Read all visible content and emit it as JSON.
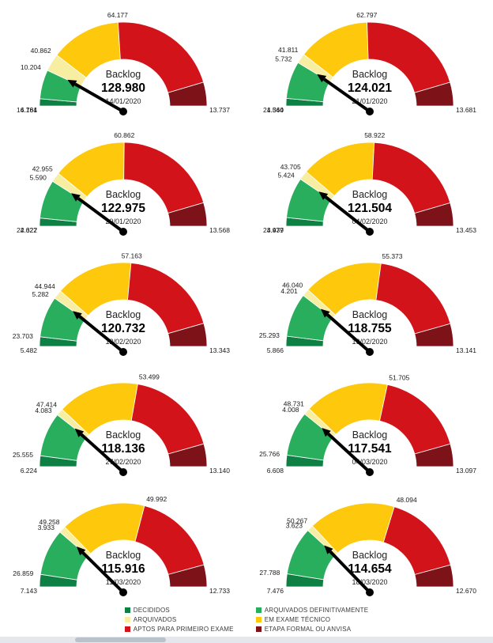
{
  "page": {
    "background": "#ffffff"
  },
  "colors": {
    "segments": [
      "#0e8043",
      "#29ae5e",
      "#f7eea1",
      "#fec90c",
      "#d21319",
      "#7e1219"
    ],
    "needle": "#000000",
    "label_text": "#1a1a1a",
    "scrollbar_track": "#e4e7eb",
    "scrollbar_thumb": "#b9c2cc"
  },
  "legend": {
    "columns": [
      {
        "items": [
          {
            "label": "DECIDIDOS",
            "color_index": 0
          },
          {
            "label": "ARQUIVADOS",
            "color_index": 2
          },
          {
            "label": "APTOS PARA PRIMEIRO EXAME",
            "color_index": 4
          }
        ]
      },
      {
        "items": [
          {
            "label": "ARQUIVADOS DEFINITIVAMENTE",
            "color_index": 1
          },
          {
            "label": "EM EXAME TÉCNICO",
            "color_index": 3
          },
          {
            "label": "ETAPA FORMAL OU ANVISA",
            "color_index": 5
          }
        ]
      }
    ]
  },
  "chart_data": [
    {
      "type": "gauge",
      "subtype": "half-donut",
      "title": "Backlog",
      "backlog_label": "128.980",
      "backlog_value": 128980,
      "date": "14/01/2020",
      "segments": [
        {
          "name": "DECIDIDOS",
          "label": "4.161",
          "value": 4161
        },
        {
          "name": "ARQUIVADOS DEFINITIVAMENTE",
          "label": "16.784",
          "value": 16784
        },
        {
          "name": "ARQUIVADOS",
          "label": "10.204",
          "value": 10204
        },
        {
          "name": "EM EXAME TÉCNICO",
          "label": "40.862",
          "value": 40862
        },
        {
          "name": "APTOS PARA PRIMEIRO EXAME",
          "label": "64.177",
          "value": 64177
        },
        {
          "name": "ETAPA FORMAL OU ANVISA",
          "label": "13.737",
          "value": 13737
        }
      ]
    },
    {
      "type": "gauge",
      "subtype": "half-donut",
      "title": "Backlog",
      "backlog_label": "124.021",
      "backlog_value": 124021,
      "date": "21/01/2020",
      "segments": [
        {
          "name": "DECIDIDOS",
          "label": "4.344",
          "value": 4344
        },
        {
          "name": "ARQUIVADOS DEFINITIVAMENTE",
          "label": "21.560",
          "value": 21560
        },
        {
          "name": "ARQUIVADOS",
          "label": "5.732",
          "value": 5732
        },
        {
          "name": "EM EXAME TÉCNICO",
          "label": "41.811",
          "value": 41811
        },
        {
          "name": "APTOS PARA PRIMEIRO EXAME",
          "label": "62.797",
          "value": 62797
        },
        {
          "name": "ETAPA FORMAL OU ANVISA",
          "label": "13.681",
          "value": 13681
        }
      ]
    },
    {
      "type": "gauge",
      "subtype": "half-donut",
      "title": "Backlog",
      "backlog_label": "122.975",
      "backlog_value": 122975,
      "date": "29/01/2020",
      "segments": [
        {
          "name": "DECIDIDOS",
          "label": "4.622",
          "value": 4622
        },
        {
          "name": "ARQUIVADOS DEFINITIVAMENTE",
          "label": "22.327",
          "value": 22327
        },
        {
          "name": "ARQUIVADOS",
          "label": "5.590",
          "value": 5590
        },
        {
          "name": "EM EXAME TÉCNICO",
          "label": "42.955",
          "value": 42955
        },
        {
          "name": "APTOS PARA PRIMEIRO EXAME",
          "label": "60.862",
          "value": 60862
        },
        {
          "name": "ETAPA FORMAL OU ANVISA",
          "label": "13.568",
          "value": 13568
        }
      ]
    },
    {
      "type": "gauge",
      "subtype": "half-donut",
      "title": "Backlog",
      "backlog_label": "121.504",
      "backlog_value": 121504,
      "date": "04/02/2020",
      "segments": [
        {
          "name": "DECIDIDOS",
          "label": "4.979",
          "value": 4979
        },
        {
          "name": "ARQUIVADOS DEFINITIVAMENTE",
          "label": "23.437",
          "value": 23437
        },
        {
          "name": "ARQUIVADOS",
          "label": "5.424",
          "value": 5424
        },
        {
          "name": "EM EXAME TÉCNICO",
          "label": "43.705",
          "value": 43705
        },
        {
          "name": "APTOS PARA PRIMEIRO EXAME",
          "label": "58.922",
          "value": 58922
        },
        {
          "name": "ETAPA FORMAL OU ANVISA",
          "label": "13.453",
          "value": 13453
        }
      ]
    },
    {
      "type": "gauge",
      "subtype": "half-donut",
      "title": "Backlog",
      "backlog_label": "120.732",
      "backlog_value": 120732,
      "date": "12/02/2020",
      "segments": [
        {
          "name": "DECIDIDOS",
          "label": "5.482",
          "value": 5482
        },
        {
          "name": "ARQUIVADOS DEFINITIVAMENTE",
          "label": "23.703",
          "value": 23703
        },
        {
          "name": "ARQUIVADOS",
          "label": "5.282",
          "value": 5282
        },
        {
          "name": "EM EXAME TÉCNICO",
          "label": "44.944",
          "value": 44944
        },
        {
          "name": "APTOS PARA PRIMEIRO EXAME",
          "label": "57.163",
          "value": 57163
        },
        {
          "name": "ETAPA FORMAL OU ANVISA",
          "label": "13.343",
          "value": 13343
        }
      ]
    },
    {
      "type": "gauge",
      "subtype": "half-donut",
      "title": "Backlog",
      "backlog_label": "118.755",
      "backlog_value": 118755,
      "date": "19/02/2020",
      "segments": [
        {
          "name": "DECIDIDOS",
          "label": "5.866",
          "value": 5866
        },
        {
          "name": "ARQUIVADOS DEFINITIVAMENTE",
          "label": "25.293",
          "value": 25293
        },
        {
          "name": "ARQUIVADOS",
          "label": "4.201",
          "value": 4201
        },
        {
          "name": "EM EXAME TÉCNICO",
          "label": "46.040",
          "value": 46040
        },
        {
          "name": "APTOS PARA PRIMEIRO EXAME",
          "label": "55.373",
          "value": 55373
        },
        {
          "name": "ETAPA FORMAL OU ANVISA",
          "label": "13.141",
          "value": 13141
        }
      ]
    },
    {
      "type": "gauge",
      "subtype": "half-donut",
      "title": "Backlog",
      "backlog_label": "118.136",
      "backlog_value": 118136,
      "date": "27/02/2020",
      "segments": [
        {
          "name": "DECIDIDOS",
          "label": "6.224",
          "value": 6224
        },
        {
          "name": "ARQUIVADOS DEFINITIVAMENTE",
          "label": "25.555",
          "value": 25555
        },
        {
          "name": "ARQUIVADOS",
          "label": "4.083",
          "value": 4083
        },
        {
          "name": "EM EXAME TÉCNICO",
          "label": "47.414",
          "value": 47414
        },
        {
          "name": "APTOS PARA PRIMEIRO EXAME",
          "label": "53.499",
          "value": 53499
        },
        {
          "name": "ETAPA FORMAL OU ANVISA",
          "label": "13.140",
          "value": 13140
        }
      ]
    },
    {
      "type": "gauge",
      "subtype": "half-donut",
      "title": "Backlog",
      "backlog_label": "117.541",
      "backlog_value": 117541,
      "date": "04/03/2020",
      "segments": [
        {
          "name": "DECIDIDOS",
          "label": "6.608",
          "value": 6608
        },
        {
          "name": "ARQUIVADOS DEFINITIVAMENTE",
          "label": "25.766",
          "value": 25766
        },
        {
          "name": "ARQUIVADOS",
          "label": "4.008",
          "value": 4008
        },
        {
          "name": "EM EXAME TÉCNICO",
          "label": "48.731",
          "value": 48731
        },
        {
          "name": "APTOS PARA PRIMEIRO EXAME",
          "label": "51.705",
          "value": 51705
        },
        {
          "name": "ETAPA FORMAL OU ANVISA",
          "label": "13.097",
          "value": 13097
        }
      ]
    },
    {
      "type": "gauge",
      "subtype": "half-donut",
      "title": "Backlog",
      "backlog_label": "115.916",
      "backlog_value": 115916,
      "date": "11/03/2020",
      "segments": [
        {
          "name": "DECIDIDOS",
          "label": "7.143",
          "value": 7143
        },
        {
          "name": "ARQUIVADOS DEFINITIVAMENTE",
          "label": "26.859",
          "value": 26859
        },
        {
          "name": "ARQUIVADOS",
          "label": "3.933",
          "value": 3933
        },
        {
          "name": "EM EXAME TÉCNICO",
          "label": "49.258",
          "value": 49258
        },
        {
          "name": "APTOS PARA PRIMEIRO EXAME",
          "label": "49.992",
          "value": 49992
        },
        {
          "name": "ETAPA FORMAL OU ANVISA",
          "label": "12.733",
          "value": 12733
        }
      ]
    },
    {
      "type": "gauge",
      "subtype": "half-donut",
      "title": "Backlog",
      "backlog_label": "114.654",
      "backlog_value": 114654,
      "date": "18/03/2020",
      "segments": [
        {
          "name": "DECIDIDOS",
          "label": "7.476",
          "value": 7476
        },
        {
          "name": "ARQUIVADOS DEFINITIVAMENTE",
          "label": "27.788",
          "value": 27788
        },
        {
          "name": "ARQUIVADOS",
          "label": "3.623",
          "value": 3623
        },
        {
          "name": "EM EXAME TÉCNICO",
          "label": "50.267",
          "value": 50267
        },
        {
          "name": "APTOS PARA PRIMEIRO EXAME",
          "label": "48.094",
          "value": 48094
        },
        {
          "name": "ETAPA FORMAL OU ANVISA",
          "label": "12.670",
          "value": 12670
        }
      ]
    }
  ]
}
